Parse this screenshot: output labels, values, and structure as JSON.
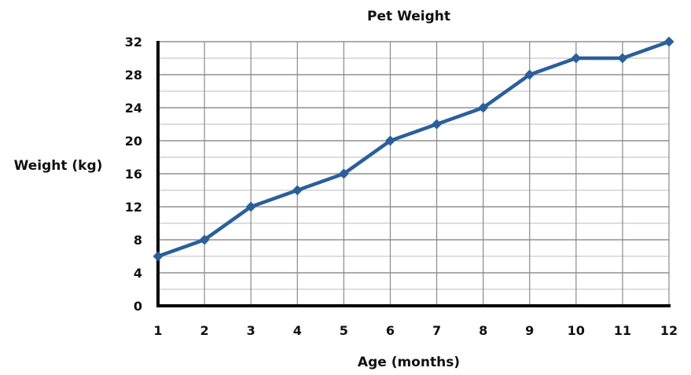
{
  "chart_data": {
    "type": "line",
    "title": "Pet Weight",
    "xlabel": "Age (months)",
    "ylabel": "Weight (kg)",
    "x": [
      1,
      2,
      3,
      4,
      5,
      6,
      7,
      8,
      9,
      10,
      11,
      12
    ],
    "series": [
      {
        "values": [
          6,
          8,
          12,
          14,
          16,
          20,
          22,
          24,
          28,
          30,
          30,
          32
        ]
      }
    ],
    "xlim": [
      1,
      12
    ],
    "ylim": [
      0,
      32
    ],
    "y_ticks": [
      0,
      4,
      8,
      12,
      16,
      20,
      24,
      28,
      32
    ],
    "minor_y_step": 2,
    "grid": true,
    "legend": false,
    "line_color": "#2a5f9a",
    "marker": "diamond"
  }
}
